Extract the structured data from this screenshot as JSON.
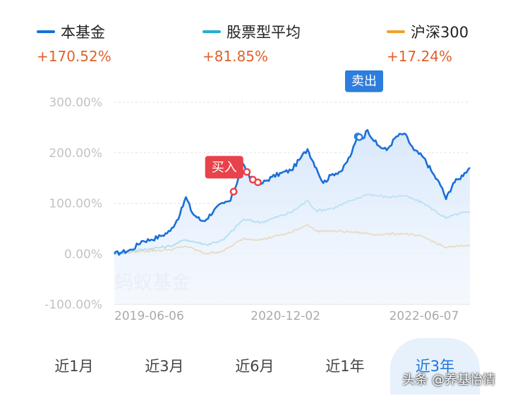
{
  "legend": [
    {
      "name": "本基金",
      "value": "+170.52%",
      "color": "#1a6fd8"
    },
    {
      "name": "股票型平均",
      "value": "+81.85%",
      "color": "#22b0cf"
    },
    {
      "name": "沪深300",
      "value": "+17.24%",
      "color": "#f0a22a"
    }
  ],
  "chart_data": {
    "type": "line",
    "title": "",
    "xlabel": "",
    "ylabel": "",
    "x_range": [
      "2019-06-06",
      "2022-07-12"
    ],
    "x_ticks": [
      "2019-06-06",
      "2020-12-02",
      "2022-06-07"
    ],
    "y_ticks": [
      "300.00%",
      "200.00%",
      "100.00%",
      "0.00%",
      "-100.00%"
    ],
    "ylim": [
      -100,
      300
    ],
    "grid": true,
    "watermark": "蚂蚁基金",
    "series": [
      {
        "name": "本基金",
        "color": "#1a6fd8",
        "area": true,
        "points": [
          [
            "2019-06-06",
            0
          ],
          [
            "2019-07-01",
            3
          ],
          [
            "2019-08-01",
            8
          ],
          [
            "2019-09-01",
            25
          ],
          [
            "2019-10-01",
            28
          ],
          [
            "2019-11-01",
            35
          ],
          [
            "2019-12-01",
            45
          ],
          [
            "2020-01-01",
            78
          ],
          [
            "2020-01-20",
            112
          ],
          [
            "2020-02-10",
            80
          ],
          [
            "2020-03-10",
            65
          ],
          [
            "2020-03-25",
            68
          ],
          [
            "2020-04-20",
            88
          ],
          [
            "2020-05-20",
            100
          ],
          [
            "2020-06-10",
            105
          ],
          [
            "2020-07-05",
            150
          ],
          [
            "2020-07-15",
            170
          ],
          [
            "2020-07-20",
            178
          ],
          [
            "2020-08-10",
            150
          ],
          [
            "2020-09-15",
            138
          ],
          [
            "2020-10-20",
            152
          ],
          [
            "2020-11-20",
            160
          ],
          [
            "2020-12-20",
            165
          ],
          [
            "2021-01-20",
            190
          ],
          [
            "2021-02-10",
            207
          ],
          [
            "2021-03-10",
            170
          ],
          [
            "2021-04-01",
            140
          ],
          [
            "2021-05-01",
            158
          ],
          [
            "2021-06-01",
            165
          ],
          [
            "2021-07-01",
            200
          ],
          [
            "2021-07-20",
            232
          ],
          [
            "2021-08-05",
            228
          ],
          [
            "2021-08-20",
            245
          ],
          [
            "2021-09-20",
            215
          ],
          [
            "2021-10-20",
            205
          ],
          [
            "2021-11-20",
            232
          ],
          [
            "2021-12-15",
            238
          ],
          [
            "2022-01-15",
            205
          ],
          [
            "2022-02-15",
            190
          ],
          [
            "2022-03-15",
            160
          ],
          [
            "2022-04-15",
            130
          ],
          [
            "2022-04-27",
            108
          ],
          [
            "2022-05-20",
            140
          ],
          [
            "2022-06-07",
            148
          ],
          [
            "2022-06-25",
            160
          ],
          [
            "2022-07-12",
            170.52
          ]
        ]
      },
      {
        "name": "股票型平均",
        "color": "#22b0cf",
        "area": false,
        "points": [
          [
            "2019-06-06",
            0
          ],
          [
            "2019-09-01",
            8
          ],
          [
            "2019-12-01",
            15
          ],
          [
            "2020-01-20",
            28
          ],
          [
            "2020-03-25",
            18
          ],
          [
            "2020-05-20",
            28
          ],
          [
            "2020-07-20",
            68
          ],
          [
            "2020-09-15",
            62
          ],
          [
            "2020-12-20",
            82
          ],
          [
            "2021-02-10",
            105
          ],
          [
            "2021-03-10",
            85
          ],
          [
            "2021-05-01",
            90
          ],
          [
            "2021-07-01",
            105
          ],
          [
            "2021-08-20",
            118
          ],
          [
            "2021-10-20",
            112
          ],
          [
            "2021-12-15",
            115
          ],
          [
            "2022-02-15",
            100
          ],
          [
            "2022-04-27",
            70
          ],
          [
            "2022-06-07",
            80
          ],
          [
            "2022-07-12",
            81.85
          ]
        ]
      },
      {
        "name": "沪深300",
        "color": "#f0a22a",
        "area": false,
        "points": [
          [
            "2019-06-06",
            0
          ],
          [
            "2019-09-01",
            5
          ],
          [
            "2019-12-01",
            8
          ],
          [
            "2020-01-20",
            15
          ],
          [
            "2020-03-25",
            0
          ],
          [
            "2020-05-20",
            6
          ],
          [
            "2020-07-20",
            30
          ],
          [
            "2020-09-15",
            28
          ],
          [
            "2020-12-20",
            42
          ],
          [
            "2021-02-10",
            58
          ],
          [
            "2021-03-10",
            45
          ],
          [
            "2021-05-01",
            45
          ],
          [
            "2021-07-01",
            43
          ],
          [
            "2021-09-20",
            38
          ],
          [
            "2021-12-15",
            40
          ],
          [
            "2022-02-15",
            33
          ],
          [
            "2022-04-27",
            12
          ],
          [
            "2022-06-07",
            15
          ],
          [
            "2022-07-12",
            17.24
          ]
        ]
      }
    ],
    "annotations": [
      {
        "label": "买入",
        "date": "2020-06-10",
        "value": 110,
        "color": "#e8424a",
        "markers": [
          "2020-06-20",
          "2020-07-10",
          "2020-08-01",
          "2020-08-20",
          "2020-09-05"
        ]
      },
      {
        "label": "卖出",
        "date": "2021-07-20",
        "value": 232,
        "color": "#2d7ddc",
        "markers": [
          "2021-07-20",
          "2021-07-25"
        ]
      }
    ]
  },
  "period_tabs": [
    {
      "label": "近1月",
      "active": false
    },
    {
      "label": "近3月",
      "active": false
    },
    {
      "label": "近6月",
      "active": false
    },
    {
      "label": "近1年",
      "active": false
    },
    {
      "label": "近3年",
      "active": true
    }
  ],
  "source_watermark": "头条 @养基怡情"
}
